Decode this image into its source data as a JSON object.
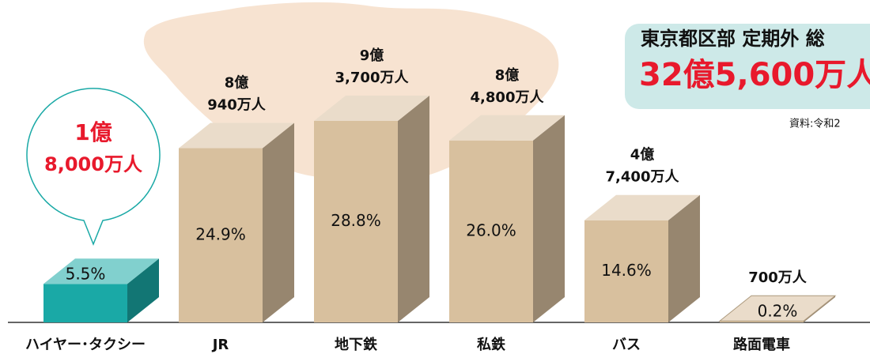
{
  "chart_data": {
    "type": "bar3d",
    "title": "東京都区部 定期外 総",
    "total": "32億5,600万人",
    "source": "資料:令和2",
    "categories": [
      "ハイヤー･タクシー",
      "JR",
      "地下鉄",
      "私鉄",
      "バス",
      "路面電車"
    ],
    "values": [
      5.5,
      24.9,
      28.8,
      26.0,
      14.6,
      0.2
    ],
    "value_labels": [
      "5.5%",
      "24.9%",
      "28.8%",
      "26.0%",
      "14.6%",
      "0.2%"
    ],
    "ridership": [
      null,
      [
        "8億",
        "940万人"
      ],
      [
        "9億",
        "3,700万人"
      ],
      [
        "8億",
        "4,800万人"
      ],
      [
        "4億",
        "7,400万人"
      ],
      [
        "700万人"
      ]
    ],
    "callout": [
      "1億",
      "8,000万人"
    ],
    "colors": [
      "#1aa9a6",
      "#d8c09e",
      "#d8c09e",
      "#d8c09e",
      "#d8c09e",
      "#d8c09e"
    ]
  }
}
